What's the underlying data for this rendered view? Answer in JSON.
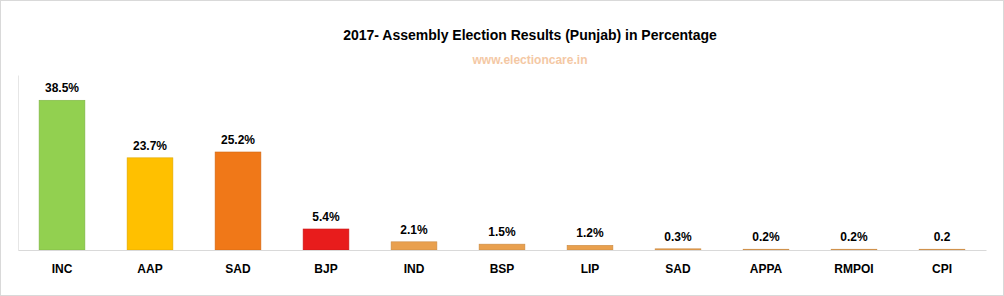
{
  "chart_data": {
    "type": "bar",
    "title": "2017- Assembly Election Results (Punjab) in Percentage",
    "subtitle": "www.electioncare.in",
    "categories": [
      "INC",
      "AAP",
      "SAD",
      "BJP",
      "IND",
      "BSP",
      "LIP",
      "SAD",
      "APPA",
      "RMPOI",
      "CPI"
    ],
    "values": [
      38.5,
      23.7,
      25.2,
      5.4,
      2.1,
      1.5,
      1.2,
      0.3,
      0.2,
      0.2,
      0.2
    ],
    "value_labels": [
      "38.5%",
      "23.7%",
      "25.2%",
      "5.4%",
      "2.1%",
      "1.5%",
      "1.2%",
      "0.3%",
      "0.2%",
      "0.2%",
      "0.2"
    ],
    "colors": [
      "#92d050",
      "#ffc000",
      "#f07818",
      "#e81c1c",
      "#e9a04e",
      "#e9a04e",
      "#e9a04e",
      "#e9a04e",
      "#e9a04e",
      "#e9a04e",
      "#e9a04e"
    ],
    "ylim": [
      0,
      45
    ],
    "data_labels": true,
    "tick_labels": "x",
    "grid": false
  }
}
